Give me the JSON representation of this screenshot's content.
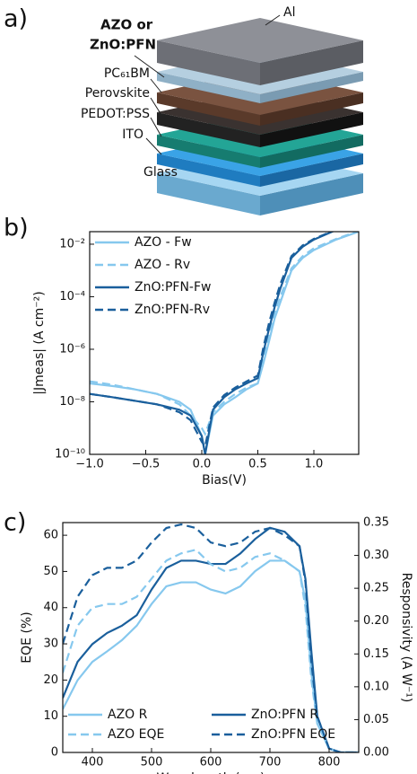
{
  "diagram": {
    "panel_label": "a)",
    "cap_label": [
      "AZO or",
      "ZnO:PFN"
    ],
    "labels": [
      "Al",
      "PC₆₁BM",
      "Perovskite",
      "PEDOT:PSS",
      "ITO",
      "Glass"
    ]
  },
  "chart_data": [
    {
      "type": "line",
      "panel_label": "b)",
      "xlabel": "Bias(V)",
      "ylabel": "|Jmeas| (A cm⁻²)",
      "x": [
        -1.0,
        -0.8,
        -0.6,
        -0.4,
        -0.2,
        -0.1,
        0.0,
        0.03,
        0.1,
        0.2,
        0.3,
        0.4,
        0.5,
        0.55,
        0.6,
        0.65,
        0.7,
        0.8,
        0.9,
        1.0,
        1.2,
        1.4
      ],
      "xlim": [
        -1.0,
        1.4
      ],
      "xticks": [
        {
          "value": -1,
          "label": "−1.0"
        },
        {
          "value": -0.5,
          "label": "−0.5"
        },
        {
          "value": 0,
          "label": "0.0"
        },
        0.5,
        {
          "value": 1,
          "label": "1.0"
        }
      ],
      "yscale": "log",
      "ylim": [
        1e-10,
        0.03
      ],
      "yticks": [
        {
          "value": 1e-10,
          "label": "10⁻¹⁰"
        },
        {
          "value": 1e-08,
          "label": "10⁻⁸"
        },
        {
          "value": 1e-06,
          "label": "10⁻⁶"
        },
        {
          "value": 0.0001,
          "label": "10⁻⁴"
        },
        {
          "value": 0.01,
          "label": "10⁻²"
        }
      ],
      "legend": "upper left",
      "series": [
        {
          "name": "AZO - Fw",
          "color": "#86c8ee",
          "linestyle": "solid",
          "values": [
            5e-08,
            4e-08,
            3e-08,
            2e-08,
            1e-08,
            5e-09,
            5e-10,
            1e-10,
            3e-09,
            8e-09,
            1.5e-08,
            3e-08,
            5e-08,
            3e-07,
            2e-06,
            1.5e-05,
            6e-05,
            0.001,
            0.003,
            0.006,
            0.015,
            0.03
          ]
        },
        {
          "name": "AZO - Rv",
          "color": "#86c8ee",
          "linestyle": "dashed",
          "values": [
            6e-08,
            4.5e-08,
            3e-08,
            2e-08,
            8e-09,
            3e-09,
            1e-09,
            6e-10,
            4e-09,
            1e-08,
            2e-08,
            3.5e-08,
            5e-08,
            5e-07,
            4e-06,
            2.5e-05,
            0.0001,
            0.0012,
            0.0035,
            0.007,
            0.016,
            0.032
          ]
        },
        {
          "name": "ZnO:PFN-Fw",
          "color": "#1a5f9c",
          "linestyle": "solid",
          "values": [
            2e-08,
            1.5e-08,
            1.1e-08,
            8e-09,
            5e-09,
            3e-09,
            5e-10,
            1e-10,
            5e-09,
            1.5e-08,
            3e-08,
            5e-08,
            8e-08,
            8e-07,
            6e-06,
            4e-05,
            0.0002,
            0.003,
            0.008,
            0.015,
            0.035,
            0.05
          ]
        },
        {
          "name": "ZnO:PFN-Rv",
          "color": "#1a5f9c",
          "linestyle": "dashed",
          "values": [
            2e-08,
            1.5e-08,
            1.1e-08,
            8e-09,
            4e-09,
            2e-09,
            3e-10,
            2e-10,
            6e-09,
            1.8e-08,
            3.5e-08,
            6e-08,
            1e-07,
            1.2e-06,
            1e-05,
            6e-05,
            0.0003,
            0.0035,
            0.009,
            0.016,
            0.036,
            0.05
          ]
        }
      ]
    },
    {
      "type": "line",
      "panel_label": "c)",
      "xlabel": "Wavelength (nm)",
      "ylabel": "EQE (%)",
      "y2label": "Responsivity (A W⁻¹)",
      "x": [
        350,
        375,
        400,
        425,
        450,
        475,
        500,
        525,
        550,
        575,
        600,
        625,
        650,
        675,
        700,
        725,
        750,
        760,
        770,
        780,
        800,
        820,
        850
      ],
      "xlim": [
        350,
        850
      ],
      "xticks": [
        400,
        500,
        600,
        700,
        800
      ],
      "ylim": [
        0,
        63.5
      ],
      "yticks": [
        0,
        10,
        20,
        30,
        40,
        50,
        60
      ],
      "y2lim": [
        0,
        0.35
      ],
      "y2ticks": [
        {
          "value": 0,
          "label": "0.00"
        },
        0.05,
        {
          "value": 0.1,
          "label": "0.10"
        },
        0.15,
        {
          "value": 0.2,
          "label": "0.20"
        },
        0.25,
        {
          "value": 0.3,
          "label": "0.30"
        },
        0.35
      ],
      "legend": "lower left",
      "legend_columns": 2,
      "series": [
        {
          "name": "AZO R",
          "color": "#86c8ee",
          "linestyle": "solid",
          "axis": "y2",
          "values": [
            0.066,
            0.11,
            0.138,
            0.154,
            0.171,
            0.193,
            0.226,
            0.253,
            0.259,
            0.259,
            0.248,
            0.242,
            0.253,
            0.276,
            0.292,
            0.292,
            0.276,
            0.231,
            0.121,
            0.044,
            0.006,
            0,
            0
          ]
        },
        {
          "name": "ZnO:PFN R",
          "color": "#1a5f9c",
          "linestyle": "solid",
          "axis": "y2",
          "values": [
            0.083,
            0.138,
            0.165,
            0.182,
            0.193,
            0.209,
            0.248,
            0.281,
            0.292,
            0.292,
            0.287,
            0.287,
            0.303,
            0.325,
            0.342,
            0.336,
            0.314,
            0.264,
            0.154,
            0.055,
            0.006,
            0,
            0
          ]
        },
        {
          "name": "AZO EQE",
          "color": "#86c8ee",
          "linestyle": "dashed",
          "values": [
            22,
            35,
            40,
            41,
            41,
            43,
            48,
            53,
            55,
            56,
            52,
            50,
            51,
            54,
            55,
            53,
            50,
            40,
            20,
            8,
            1,
            0,
            0
          ]
        },
        {
          "name": "ZnO:PFN EQE",
          "color": "#1a5f9c",
          "linestyle": "dashed",
          "values": [
            30,
            43,
            49,
            51,
            51,
            53,
            58,
            62,
            63,
            62,
            58,
            57,
            58,
            61,
            62,
            60,
            57,
            47,
            25,
            10,
            1,
            0,
            0
          ]
        }
      ]
    }
  ]
}
